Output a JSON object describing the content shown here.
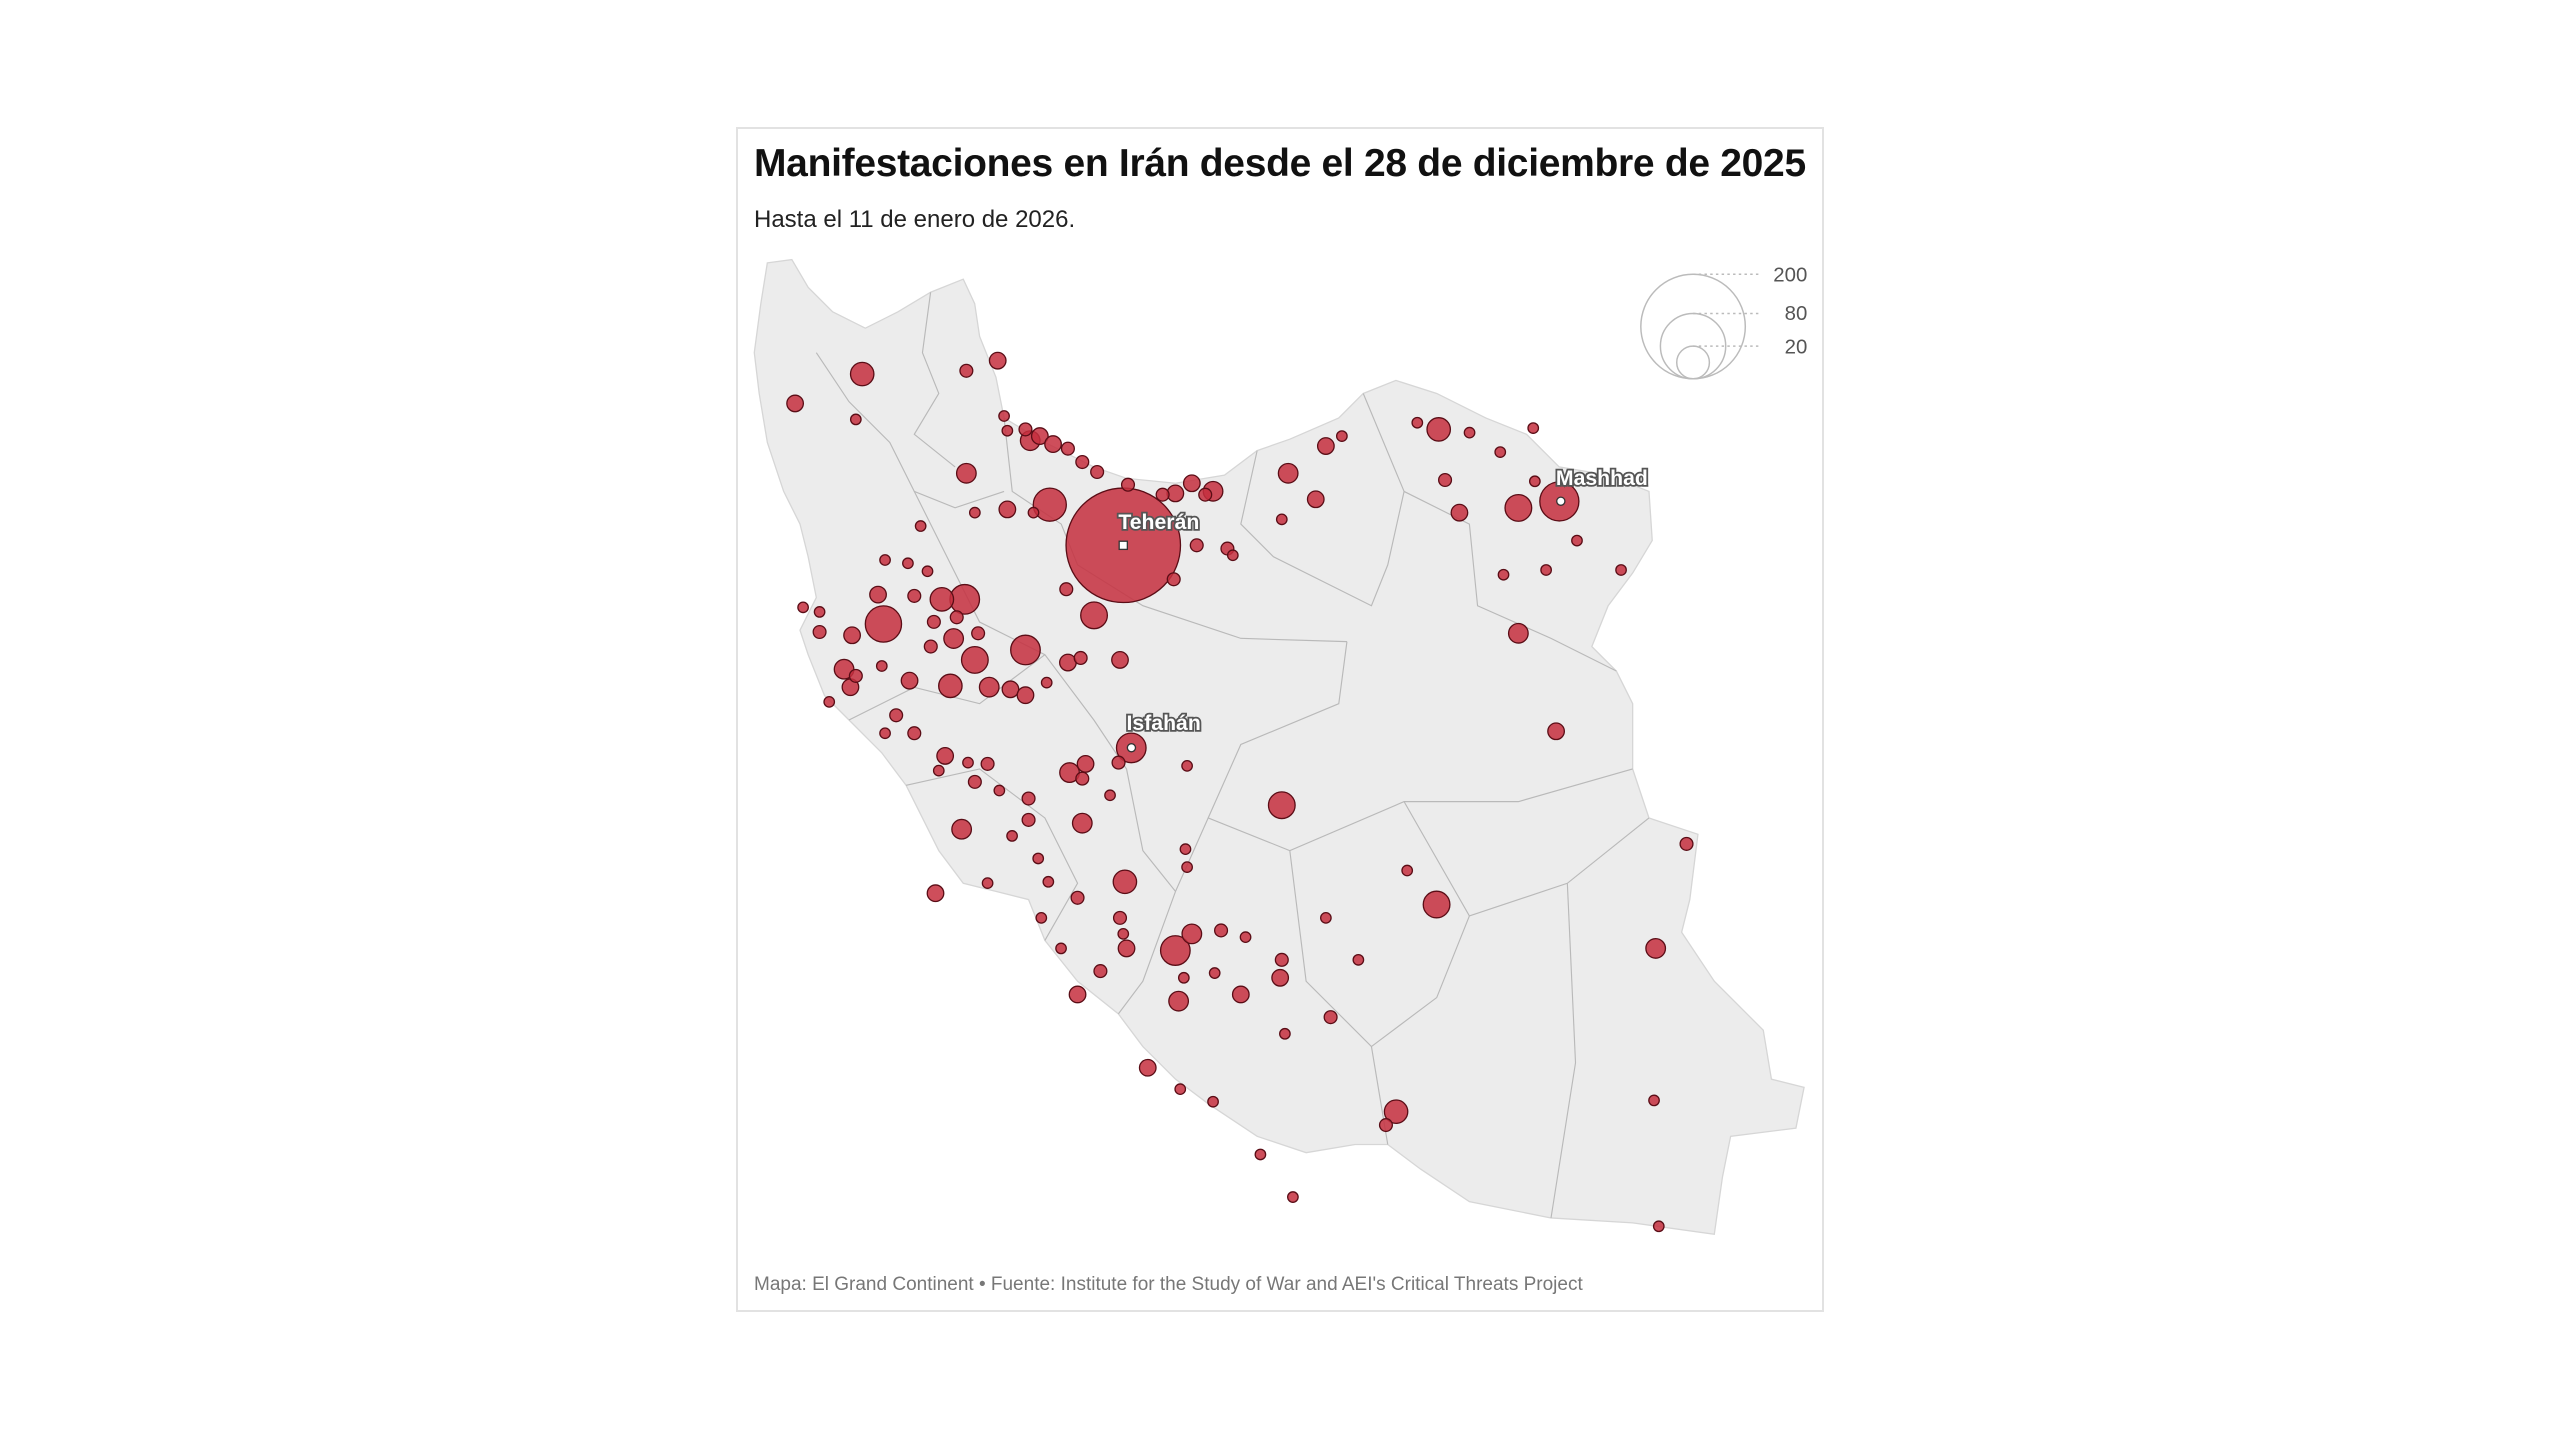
{
  "title": "Manifestaciones en Irán desde el 28 de diciembre de 2025",
  "subtitle": "Hasta el 11 de enero de 2026.",
  "footer": "Mapa: El Grand Continent • Fuente: Institute for the Study of War and AEI's Critical Threats Project",
  "colors": {
    "bubble_fill": "#c62f3e",
    "bubble_stroke": "#5a0d16",
    "land": "#ececec",
    "border": "#b9b9b9"
  },
  "legend": {
    "values": [
      200,
      80,
      20
    ],
    "labels": [
      "200",
      "80",
      "20"
    ]
  },
  "cities": [
    {
      "name": "Teherán",
      "lon": 51.4,
      "lat": 35.7
    },
    {
      "name": "Isfahán",
      "lon": 51.55,
      "lat": 32.66
    },
    {
      "name": "Mashhad",
      "lon": 59.6,
      "lat": 36.36
    }
  ],
  "chart_data": {
    "type": "bubble-map",
    "title": "Manifestaciones en Irán desde el 28 de diciembre de 2025",
    "subtitle": "Hasta el 11 de enero de 2026.",
    "size_legend": [
      200,
      80,
      20
    ],
    "points": [
      [
        51.4,
        35.7,
        240
      ],
      [
        59.6,
        36.36,
        28
      ],
      [
        51.55,
        32.66,
        16
      ],
      [
        46.49,
        38.27,
        10
      ],
      [
        45.23,
        37.83,
        5
      ],
      [
        46.37,
        37.59,
        2
      ],
      [
        48.45,
        38.32,
        3
      ],
      [
        49.04,
        38.47,
        5
      ],
      [
        48.45,
        36.78,
        7
      ],
      [
        49.16,
        37.64,
        2
      ],
      [
        49.22,
        37.42,
        2
      ],
      [
        49.56,
        37.44,
        3
      ],
      [
        49.65,
        37.27,
        7
      ],
      [
        49.83,
        37.34,
        5
      ],
      [
        50.08,
        37.22,
        5
      ],
      [
        50.36,
        37.15,
        3
      ],
      [
        50.63,
        36.95,
        3
      ],
      [
        50.91,
        36.8,
        3
      ],
      [
        50.02,
        36.31,
        20
      ],
      [
        49.22,
        36.24,
        5
      ],
      [
        48.61,
        36.19,
        2
      ],
      [
        49.71,
        36.19,
        2
      ],
      [
        47.59,
        35.99,
        2
      ],
      [
        46.92,
        35.48,
        2
      ],
      [
        47.35,
        35.43,
        2
      ],
      [
        47.72,
        35.31,
        2
      ],
      [
        46.79,
        34.96,
        5
      ],
      [
        48.42,
        34.89,
        16
      ],
      [
        47.99,
        34.89,
        10
      ],
      [
        47.47,
        34.94,
        3
      ],
      [
        46.89,
        34.52,
        24
      ],
      [
        46.3,
        34.35,
        5
      ],
      [
        45.69,
        34.4,
        3
      ],
      [
        45.38,
        34.77,
        2
      ],
      [
        45.69,
        34.7,
        2
      ],
      [
        47.84,
        34.55,
        3
      ],
      [
        48.27,
        34.62,
        3
      ],
      [
        48.67,
        34.38,
        3
      ],
      [
        48.21,
        34.3,
        7
      ],
      [
        47.78,
        34.18,
        3
      ],
      [
        49.56,
        34.13,
        16
      ],
      [
        48.61,
        33.98,
        13
      ],
      [
        46.15,
        33.84,
        7
      ],
      [
        46.37,
        33.74,
        3
      ],
      [
        46.27,
        33.57,
        5
      ],
      [
        46.86,
        33.89,
        2
      ],
      [
        47.38,
        33.67,
        5
      ],
      [
        48.15,
        33.59,
        10
      ],
      [
        48.88,
        33.57,
        7
      ],
      [
        49.28,
        33.54,
        5
      ],
      [
        49.56,
        33.45,
        5
      ],
      [
        49.96,
        33.64,
        2
      ],
      [
        50.36,
        33.94,
        5
      ],
      [
        50.6,
        34.01,
        3
      ],
      [
        51.34,
        33.98,
        5
      ],
      [
        50.85,
        34.65,
        13
      ],
      [
        50.33,
        35.04,
        3
      ],
      [
        52.35,
        35.19,
        3
      ],
      [
        52.78,
        35.7,
        3
      ],
      [
        53.36,
        35.65,
        3
      ],
      [
        53.46,
        35.55,
        2
      ],
      [
        51.49,
        36.61,
        3
      ],
      [
        52.14,
        36.46,
        3
      ],
      [
        52.38,
        36.48,
        5
      ],
      [
        52.69,
        36.63,
        5
      ],
      [
        52.94,
        36.46,
        3
      ],
      [
        53.09,
        36.51,
        7
      ],
      [
        54.38,
        36.09,
        2
      ],
      [
        55.02,
        36.39,
        5
      ],
      [
        54.5,
        36.78,
        7
      ],
      [
        55.21,
        37.19,
        5
      ],
      [
        55.51,
        37.34,
        2
      ],
      [
        56.93,
        37.54,
        2
      ],
      [
        57.33,
        37.44,
        10
      ],
      [
        57.91,
        37.39,
        2
      ],
      [
        58.49,
        37.1,
        2
      ],
      [
        59.11,
        37.46,
        2
      ],
      [
        57.45,
        36.68,
        3
      ],
      [
        57.72,
        36.19,
        5
      ],
      [
        58.83,
        36.26,
        13
      ],
      [
        59.14,
        36.66,
        2
      ],
      [
        59.93,
        35.77,
        2
      ],
      [
        60.76,
        35.33,
        2
      ],
      [
        59.35,
        35.33,
        2
      ],
      [
        58.55,
        35.26,
        2
      ],
      [
        58.83,
        34.38,
        7
      ],
      [
        59.54,
        32.91,
        5
      ],
      [
        47.13,
        33.15,
        3
      ],
      [
        47.47,
        32.88,
        3
      ],
      [
        46.92,
        32.88,
        2
      ],
      [
        45.87,
        33.35,
        2
      ],
      [
        48.05,
        32.54,
        5
      ],
      [
        47.93,
        32.32,
        2
      ],
      [
        48.48,
        32.44,
        2
      ],
      [
        48.85,
        32.42,
        3
      ],
      [
        48.61,
        32.15,
        3
      ],
      [
        49.07,
        32.02,
        2
      ],
      [
        49.62,
        31.9,
        3
      ],
      [
        49.62,
        31.58,
        3
      ],
      [
        48.36,
        31.44,
        7
      ],
      [
        49.31,
        31.34,
        2
      ],
      [
        50.63,
        31.53,
        7
      ],
      [
        50.39,
        32.29,
        7
      ],
      [
        50.69,
        32.42,
        5
      ],
      [
        50.63,
        32.2,
        3
      ],
      [
        51.31,
        32.44,
        3
      ],
      [
        51.15,
        31.95,
        2
      ],
      [
        52.6,
        32.39,
        2
      ],
      [
        54.38,
        31.8,
        13
      ],
      [
        52.57,
        31.14,
        2
      ],
      [
        52.6,
        30.87,
        2
      ],
      [
        49.8,
        31.0,
        2
      ],
      [
        49.99,
        30.65,
        2
      ],
      [
        48.85,
        30.63,
        2
      ],
      [
        47.87,
        30.48,
        5
      ],
      [
        50.54,
        30.41,
        3
      ],
      [
        51.43,
        30.65,
        10
      ],
      [
        51.34,
        30.11,
        3
      ],
      [
        51.4,
        29.87,
        2
      ],
      [
        51.46,
        29.65,
        5
      ],
      [
        49.86,
        30.11,
        2
      ],
      [
        50.23,
        29.65,
        2
      ],
      [
        50.97,
        29.31,
        3
      ],
      [
        50.54,
        28.96,
        5
      ],
      [
        52.38,
        29.62,
        16
      ],
      [
        52.69,
        29.87,
        7
      ],
      [
        53.24,
        29.92,
        3
      ],
      [
        53.7,
        29.82,
        2
      ],
      [
        52.54,
        29.21,
        2
      ],
      [
        53.12,
        29.28,
        2
      ],
      [
        52.44,
        28.86,
        7
      ],
      [
        53.61,
        28.96,
        5
      ],
      [
        54.35,
        29.21,
        5
      ],
      [
        54.38,
        29.48,
        3
      ],
      [
        55.21,
        30.11,
        2
      ],
      [
        55.82,
        29.48,
        2
      ],
      [
        56.74,
        30.82,
        2
      ],
      [
        57.29,
        30.31,
        13
      ],
      [
        54.44,
        28.37,
        2
      ],
      [
        55.3,
        28.62,
        3
      ],
      [
        51.86,
        27.86,
        5
      ],
      [
        52.47,
        27.54,
        2
      ],
      [
        53.09,
        27.35,
        2
      ],
      [
        56.53,
        27.2,
        10
      ],
      [
        56.34,
        27.0,
        3
      ],
      [
        53.98,
        26.56,
        2
      ],
      [
        54.59,
        25.92,
        2
      ],
      [
        61.41,
        29.65,
        7
      ],
      [
        61.99,
        31.22,
        3
      ],
      [
        61.38,
        27.37,
        2
      ],
      [
        61.47,
        25.48,
        2
      ]
    ]
  }
}
